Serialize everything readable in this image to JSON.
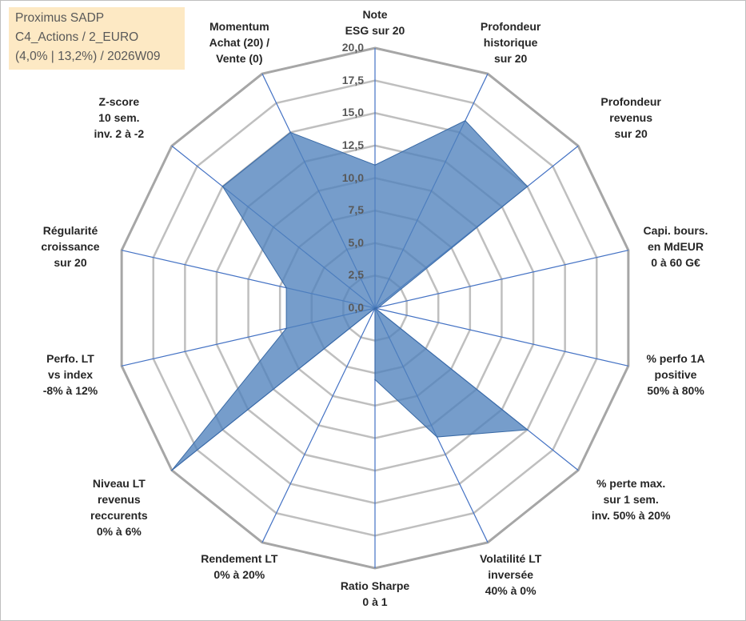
{
  "info_box": {
    "line1": "Proximus SADP",
    "line2": "C4_Actions / 2_EURO",
    "line3": "(4,0% | 13,2%) / 2026W09"
  },
  "chart_data": {
    "type": "radar",
    "title": "",
    "rmin": 0,
    "rmax": 20,
    "ticks": [
      "0,0",
      "2,5",
      "5,0",
      "7,5",
      "10,0",
      "12,5",
      "15,0",
      "17,5",
      "20,0"
    ],
    "grid": true,
    "axes": [
      {
        "lines": [
          "Note",
          "ESG sur 20"
        ]
      },
      {
        "lines": [
          "Profondeur",
          "historique",
          "sur 20"
        ]
      },
      {
        "lines": [
          "Profondeur",
          "revenus",
          "sur 20"
        ]
      },
      {
        "lines": [
          "Capi. bours.",
          "en MdEUR",
          "0 à 60 G€"
        ]
      },
      {
        "lines": [
          "% perfo 1A",
          "positive",
          "50% à 80%"
        ]
      },
      {
        "lines": [
          "% perte max.",
          "sur 1 sem.",
          "inv. 50% à 20%"
        ]
      },
      {
        "lines": [
          "Volatilité LT",
          "inversée",
          "40% à 0%"
        ]
      },
      {
        "lines": [
          "Ratio Sharpe",
          "0 à 1"
        ]
      },
      {
        "lines": [
          "Rendement LT",
          "0% à 20%"
        ]
      },
      {
        "lines": [
          "Niveau LT",
          "revenus",
          "reccurents",
          "0% à 6%"
        ]
      },
      {
        "lines": [
          "Perfo. LT",
          "vs index",
          "-8% à 12%"
        ]
      },
      {
        "lines": [
          "Régularité",
          "croissance",
          "sur 20"
        ]
      },
      {
        "lines": [
          "Z-score",
          "10 sem.",
          "inv. 2 à -2"
        ]
      },
      {
        "lines": [
          "Momentum",
          "Achat (20) /",
          "Vente (0)"
        ]
      }
    ],
    "series": [
      {
        "values": [
          11,
          16,
          15,
          0.3,
          0,
          15,
          11,
          5.5,
          0,
          20,
          7,
          7,
          15,
          15
        ],
        "color": "#4f81bd"
      }
    ],
    "colors": {
      "fill": "#4f81bd",
      "spoke": "#4472c4",
      "grid": "#bfbfbf",
      "outer_ring": "#a6a6a6",
      "tick_text": "#595959",
      "label_text": "#262626",
      "info_bg": "#fde9c4"
    }
  }
}
